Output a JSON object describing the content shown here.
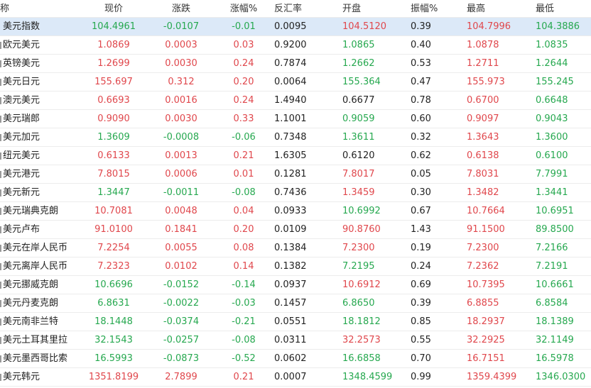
{
  "table": {
    "header": [
      "称",
      "现价",
      "涨跌",
      "涨幅%",
      "反汇率",
      "开盘",
      "振幅%",
      "最高",
      "最低"
    ],
    "colors": {
      "up": "#e0474c",
      "down": "#26a84f",
      "neutral": "#222222",
      "selected": "#dce9f8"
    },
    "rows": [
      [
        "美元指数",
        "104.4961",
        "-0.0107",
        "-0.01",
        "0.0095",
        "104.5120",
        "0.39",
        "104.7996",
        "104.3886"
      ],
      [
        "欧元美元",
        "1.0869",
        "0.0003",
        "0.03",
        "0.9200",
        "1.0865",
        "0.40",
        "1.0878",
        "1.0835"
      ],
      [
        "英镑美元",
        "1.2699",
        "0.0030",
        "0.24",
        "0.7874",
        "1.2662",
        "0.53",
        "1.2711",
        "1.2644"
      ],
      [
        "美元日元",
        "155.697",
        "0.312",
        "0.20",
        "0.0064",
        "155.364",
        "0.47",
        "155.973",
        "155.245"
      ],
      [
        "澳元美元",
        "0.6693",
        "0.0016",
        "0.24",
        "1.4940",
        "0.6677",
        "0.78",
        "0.6700",
        "0.6648"
      ],
      [
        "美元瑞郎",
        "0.9090",
        "0.0030",
        "0.33",
        "1.1001",
        "0.9059",
        "0.60",
        "0.9097",
        "0.9043"
      ],
      [
        "美元加元",
        "1.3609",
        "-0.0008",
        "-0.06",
        "0.7348",
        "1.3611",
        "0.32",
        "1.3643",
        "1.3600"
      ],
      [
        "纽元美元",
        "0.6133",
        "0.0013",
        "0.21",
        "1.6305",
        "0.6120",
        "0.62",
        "0.6138",
        "0.6100"
      ],
      [
        "美元港元",
        "7.8015",
        "0.0006",
        "0.01",
        "0.1281",
        "7.8017",
        "0.05",
        "7.8031",
        "7.7991"
      ],
      [
        "美元新元",
        "1.3447",
        "-0.0011",
        "-0.08",
        "0.7436",
        "1.3459",
        "0.30",
        "1.3482",
        "1.3441"
      ],
      [
        "美元瑞典克朗",
        "10.7081",
        "0.0048",
        "0.04",
        "0.0933",
        "10.6992",
        "0.67",
        "10.7664",
        "10.6951"
      ],
      [
        "美元卢布",
        "91.0100",
        "0.1841",
        "0.20",
        "0.0109",
        "90.8760",
        "1.43",
        "91.1500",
        "89.8500"
      ],
      [
        "美元在岸人民币",
        "7.2254",
        "0.0055",
        "0.08",
        "0.1384",
        "7.2300",
        "0.19",
        "7.2300",
        "7.2166"
      ],
      [
        "美元离岸人民币",
        "7.2323",
        "0.0102",
        "0.14",
        "0.1382",
        "7.2195",
        "0.24",
        "7.2362",
        "7.2191"
      ],
      [
        "美元挪威克朗",
        "10.6696",
        "-0.0152",
        "-0.14",
        "0.0937",
        "10.6912",
        "0.69",
        "10.7395",
        "10.6661"
      ],
      [
        "美元丹麦克朗",
        "6.8631",
        "-0.0022",
        "-0.03",
        "0.1457",
        "6.8650",
        "0.39",
        "6.8855",
        "6.8584"
      ],
      [
        "美元南非兰特",
        "18.1448",
        "-0.0374",
        "-0.21",
        "0.0551",
        "18.1812",
        "0.85",
        "18.2937",
        "18.1389"
      ],
      [
        "美元土耳其里拉",
        "32.1543",
        "-0.0257",
        "-0.08",
        "0.0311",
        "32.2573",
        "0.55",
        "32.2925",
        "32.1149"
      ],
      [
        "美元墨西哥比索",
        "16.5993",
        "-0.0873",
        "-0.52",
        "0.0602",
        "16.6858",
        "0.70",
        "16.7151",
        "16.5978"
      ],
      [
        "美元韩元",
        "1351.8199",
        "2.7899",
        "0.21",
        "0.0007",
        "1348.4599",
        "0.99",
        "1359.4399",
        "1346.0300"
      ]
    ],
    "tones": [
      [
        null,
        "down",
        "down",
        "down",
        null,
        "up",
        null,
        "up",
        "down"
      ],
      [
        null,
        "up",
        "up",
        "up",
        null,
        "down",
        null,
        "up",
        "down"
      ],
      [
        null,
        "up",
        "up",
        "up",
        null,
        "down",
        null,
        "up",
        "down"
      ],
      [
        null,
        "up",
        "up",
        "up",
        null,
        "down",
        null,
        "up",
        "down"
      ],
      [
        null,
        "up",
        "up",
        "up",
        null,
        null,
        null,
        "up",
        "down"
      ],
      [
        null,
        "up",
        "up",
        "up",
        null,
        "down",
        null,
        "up",
        "down"
      ],
      [
        null,
        "down",
        "down",
        "down",
        null,
        "down",
        null,
        "up",
        "down"
      ],
      [
        null,
        "up",
        "up",
        "up",
        null,
        null,
        null,
        "up",
        "down"
      ],
      [
        null,
        "up",
        "up",
        "up",
        null,
        "up",
        null,
        "up",
        "down"
      ],
      [
        null,
        "down",
        "down",
        "down",
        null,
        "up",
        null,
        "up",
        "down"
      ],
      [
        null,
        "up",
        "up",
        "up",
        null,
        "down",
        null,
        "up",
        "down"
      ],
      [
        null,
        "up",
        "up",
        "up",
        null,
        "up",
        null,
        "up",
        "down"
      ],
      [
        null,
        "up",
        "up",
        "up",
        null,
        "up",
        null,
        "up",
        "down"
      ],
      [
        null,
        "up",
        "up",
        "up",
        null,
        "down",
        null,
        "up",
        "down"
      ],
      [
        null,
        "down",
        "down",
        "down",
        null,
        "up",
        null,
        "up",
        "down"
      ],
      [
        null,
        "down",
        "down",
        "down",
        null,
        "down",
        null,
        "up",
        "down"
      ],
      [
        null,
        "down",
        "down",
        "down",
        null,
        "down",
        null,
        "up",
        "down"
      ],
      [
        null,
        "down",
        "down",
        "down",
        null,
        "up",
        null,
        "up",
        "down"
      ],
      [
        null,
        "down",
        "down",
        "down",
        null,
        "down",
        null,
        "up",
        "down"
      ],
      [
        null,
        "up",
        "up",
        "up",
        null,
        "down",
        null,
        "up",
        "down"
      ]
    ],
    "selected_row": 0
  }
}
